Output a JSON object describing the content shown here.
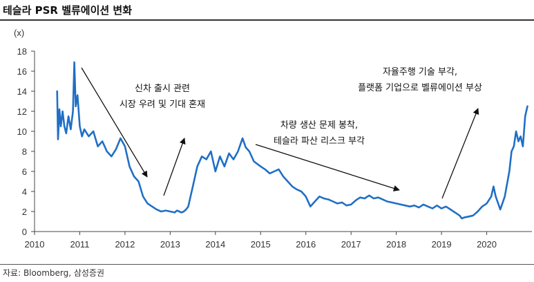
{
  "title": "테슬라 PSR 벨류에이션 변화",
  "source": "자료: Bloomberg, 삼성증권",
  "colors": {
    "series": "#1f6fc5",
    "axis": "#444444",
    "text": "#111111"
  },
  "chart_data": {
    "type": "line",
    "unit_label": "(x)",
    "ylim": [
      0,
      18
    ],
    "yticks": [
      0,
      2,
      4,
      6,
      8,
      10,
      12,
      14,
      16,
      18
    ],
    "xlim": [
      2010,
      2021
    ],
    "xticks": [
      2010,
      2011,
      2012,
      2013,
      2014,
      2015,
      2016,
      2017,
      2018,
      2019,
      2020
    ],
    "grid": false,
    "legend": "none",
    "series": [
      {
        "x": [
          2010.5,
          2010.52,
          2010.55,
          2010.58,
          2010.62,
          2010.66,
          2010.7,
          2010.75,
          2010.8,
          2010.85,
          2010.88,
          2010.91,
          2010.95,
          2011.0,
          2011.05,
          2011.1,
          2011.2,
          2011.3,
          2011.4,
          2011.5,
          2011.6,
          2011.7,
          2011.8,
          2011.9,
          2012.0,
          2012.1,
          2012.2,
          2012.3,
          2012.4,
          2012.5,
          2012.6,
          2012.7,
          2012.8,
          2012.9,
          2013.0,
          2013.1,
          2013.15,
          2013.2,
          2013.25,
          2013.3,
          2013.35,
          2013.4,
          2013.5,
          2013.6,
          2013.7,
          2013.8,
          2013.9,
          2014.0,
          2014.1,
          2014.2,
          2014.3,
          2014.4,
          2014.5,
          2014.6,
          2014.67,
          2014.75,
          2014.85,
          2015.0,
          2015.1,
          2015.2,
          2015.3,
          2015.4,
          2015.5,
          2015.6,
          2015.7,
          2015.8,
          2015.9,
          2016.0,
          2016.1,
          2016.2,
          2016.3,
          2016.4,
          2016.5,
          2016.6,
          2016.7,
          2016.8,
          2016.9,
          2017.0,
          2017.1,
          2017.2,
          2017.3,
          2017.4,
          2017.5,
          2017.6,
          2017.7,
          2017.8,
          2017.9,
          2018.0,
          2018.1,
          2018.2,
          2018.3,
          2018.4,
          2018.5,
          2018.6,
          2018.7,
          2018.8,
          2018.9,
          2019.0,
          2019.1,
          2019.2,
          2019.3,
          2019.4,
          2019.45,
          2019.5,
          2019.6,
          2019.7,
          2019.8,
          2019.9,
          2020.0,
          2020.1,
          2020.15,
          2020.2,
          2020.3,
          2020.4,
          2020.5,
          2020.55,
          2020.6,
          2020.65,
          2020.7,
          2020.75,
          2020.8,
          2020.85,
          2020.9
        ],
        "y": [
          14.0,
          9.2,
          12.2,
          10.5,
          12.0,
          10.5,
          9.8,
          11.5,
          10.2,
          12.0,
          16.9,
          12.5,
          13.6,
          10.5,
          9.5,
          10.2,
          9.5,
          10.0,
          8.5,
          9.0,
          8.0,
          7.5,
          8.2,
          9.3,
          8.5,
          6.5,
          5.5,
          5.0,
          3.5,
          2.8,
          2.5,
          2.2,
          2.0,
          2.1,
          2.0,
          1.9,
          2.1,
          2.0,
          1.9,
          2.0,
          2.2,
          2.5,
          4.5,
          6.5,
          7.5,
          7.2,
          8.0,
          6.0,
          7.5,
          6.5,
          7.8,
          7.2,
          8.0,
          9.3,
          8.4,
          8.0,
          7.0,
          6.5,
          6.2,
          5.8,
          6.0,
          6.2,
          5.5,
          5.0,
          4.5,
          4.2,
          4.0,
          3.5,
          2.5,
          3.0,
          3.5,
          3.3,
          3.2,
          3.0,
          2.8,
          2.9,
          2.6,
          2.7,
          3.1,
          3.4,
          3.3,
          3.6,
          3.3,
          3.4,
          3.2,
          3.0,
          2.9,
          2.8,
          2.7,
          2.6,
          2.5,
          2.6,
          2.4,
          2.7,
          2.5,
          2.3,
          2.6,
          2.3,
          2.5,
          2.2,
          1.9,
          1.6,
          1.3,
          1.4,
          1.5,
          1.6,
          2.0,
          2.5,
          2.8,
          3.5,
          4.5,
          3.5,
          2.2,
          3.5,
          6.0,
          8.0,
          8.5,
          10.0,
          9.0,
          9.5,
          8.5,
          11.5,
          12.5
        ]
      }
    ],
    "annotations": [
      {
        "lines": [
          "신차 출시 관련",
          "시장 우려 및 기대 혼재"
        ]
      },
      {
        "lines": [
          "차량 생산 문제 봉착,",
          "테슬라 파산 리스크 부각"
        ]
      },
      {
        "lines": [
          "자율주행 기술 부각,",
          "플랫폼 기업으로 벨류에이션 부상"
        ]
      }
    ]
  }
}
